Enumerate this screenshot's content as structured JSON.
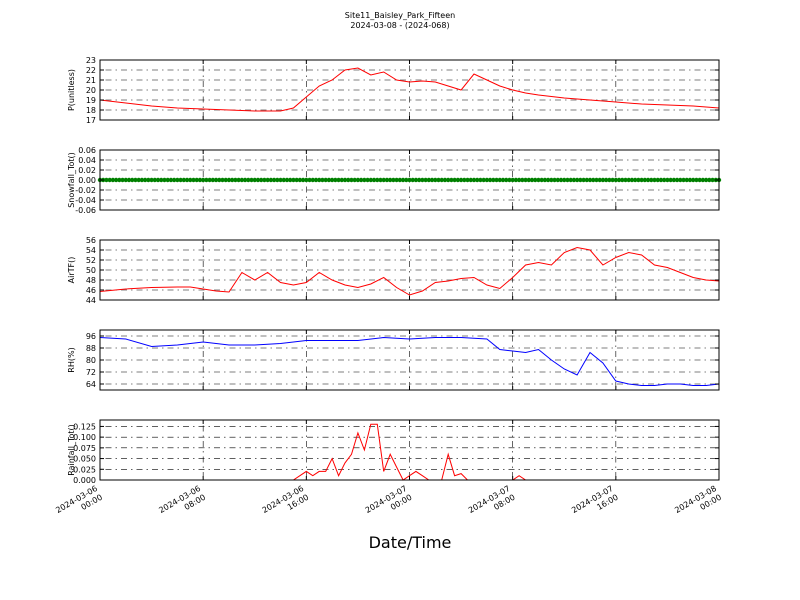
{
  "title": "Site11_Baisley_Park_Fifteen",
  "subtitle": "2024-03-08 - (2024-068)",
  "xlabel": "Date/Time",
  "chart_data": [
    {
      "type": "line",
      "ylabel": "P(unitless)",
      "ylim": [
        17,
        23
      ],
      "yticks": [
        17,
        18,
        19,
        20,
        21,
        22,
        23
      ],
      "ytick_labels": [
        "17",
        "18",
        "19",
        "20",
        "21",
        "22",
        "23"
      ],
      "color": "#ff0000",
      "grid": true,
      "x_hours": [
        0,
        2,
        4,
        6,
        8,
        10,
        12,
        14,
        15,
        16,
        17,
        18,
        19,
        20,
        21,
        22,
        23,
        24,
        25,
        26,
        27,
        28,
        29,
        30,
        31,
        32,
        33,
        34,
        36,
        38,
        40,
        42,
        44,
        46,
        48
      ],
      "values": [
        19,
        18.7,
        18.4,
        18.2,
        18.1,
        18,
        17.9,
        17.9,
        18.2,
        19.3,
        20.4,
        21,
        22,
        22.2,
        21.5,
        21.8,
        21,
        20.8,
        20.9,
        20.8,
        20.4,
        20,
        21.6,
        21,
        20.4,
        20,
        19.7,
        19.5,
        19.2,
        19,
        18.8,
        18.6,
        18.5,
        18.4,
        18.2
      ]
    },
    {
      "type": "scatter",
      "ylabel": "Snowfall_Tot()",
      "ylim": [
        -0.06,
        0.06
      ],
      "yticks": [
        -0.06,
        -0.04,
        -0.02,
        0.0,
        0.02,
        0.04,
        0.06
      ],
      "ytick_labels": [
        "-0.06",
        "-0.04",
        "-0.02",
        "0.00",
        "0.02",
        "0.04",
        "0.06"
      ],
      "color": "#008000",
      "grid": true,
      "x_hours": [
        0,
        48
      ],
      "values": [
        0,
        0
      ]
    },
    {
      "type": "line",
      "ylabel": "AirTF()",
      "ylim": [
        44,
        56
      ],
      "yticks": [
        44,
        46,
        48,
        50,
        52,
        54,
        56
      ],
      "ytick_labels": [
        "44",
        "46",
        "48",
        "50",
        "52",
        "54",
        "56"
      ],
      "color": "#ff0000",
      "grid": true,
      "x_hours": [
        0,
        2,
        4,
        6,
        7,
        8,
        9,
        10,
        11,
        12,
        13,
        14,
        15,
        16,
        17,
        18,
        19,
        20,
        21,
        22,
        23,
        24,
        25,
        26,
        27,
        28,
        29,
        30,
        31,
        32,
        33,
        34,
        35,
        36,
        37,
        38,
        39,
        40,
        41,
        42,
        43,
        44,
        45,
        46,
        47,
        48
      ],
      "values": [
        45.7,
        46.2,
        46.5,
        46.6,
        46.6,
        46.2,
        45.8,
        45.6,
        49.5,
        48,
        49.5,
        47.5,
        47,
        47.5,
        49.5,
        48,
        47,
        46.5,
        47.2,
        48.5,
        46.5,
        45,
        45.8,
        47.5,
        47.8,
        48.3,
        48.5,
        47,
        46.3,
        48.5,
        51,
        51.5,
        51,
        53.5,
        54.5,
        54,
        51,
        52.5,
        53.5,
        53,
        51,
        50.5,
        49.5,
        48.5,
        48,
        47.8
      ]
    },
    {
      "type": "line",
      "ylabel": "RH(%)",
      "ylim": [
        60,
        100
      ],
      "yticks": [
        64,
        72,
        80,
        88,
        96
      ],
      "ytick_labels": [
        "64",
        "72",
        "80",
        "88",
        "96"
      ],
      "color": "#0000ff",
      "grid": true,
      "x_hours": [
        0,
        2,
        4,
        6,
        8,
        10,
        12,
        14,
        16,
        18,
        20,
        22,
        24,
        26,
        28,
        30,
        31,
        32,
        33,
        34,
        35,
        36,
        37,
        38,
        39,
        40,
        41,
        42,
        43,
        44,
        45,
        46,
        47,
        48
      ],
      "values": [
        95,
        94,
        89,
        90,
        92,
        90,
        90,
        91,
        93,
        93,
        93,
        95,
        94,
        95,
        95,
        94,
        87,
        86,
        85,
        87,
        80,
        74,
        70,
        85,
        78,
        66,
        64,
        63,
        63,
        64,
        64,
        63,
        63,
        64
      ]
    },
    {
      "type": "line",
      "ylabel": "Rainfall_Tot()",
      "ylim": [
        0,
        0.14
      ],
      "yticks": [
        0.0,
        0.025,
        0.05,
        0.075,
        0.1,
        0.125
      ],
      "ytick_labels": [
        "0.000",
        "0.025",
        "0.050",
        "0.075",
        "0.100",
        "0.125"
      ],
      "color": "#ff0000",
      "grid": true,
      "x_hours": [
        0,
        15,
        15.5,
        16,
        16.5,
        17,
        17.5,
        18,
        18.5,
        19,
        19.5,
        20,
        20.5,
        21,
        21.5,
        22,
        22.5,
        23,
        23.5,
        24,
        24.5,
        25,
        25.5,
        26,
        26.5,
        27,
        27.5,
        28,
        28.5,
        29,
        30,
        32,
        32.5,
        33,
        48
      ],
      "values": [
        0,
        0,
        0.01,
        0.02,
        0.01,
        0.02,
        0.02,
        0.05,
        0.01,
        0.04,
        0.06,
        0.11,
        0.07,
        0.13,
        0.13,
        0.02,
        0.06,
        0.03,
        0.0,
        0.01,
        0.02,
        0.01,
        0.0,
        0.0,
        0.0,
        0.06,
        0.01,
        0.015,
        0.0,
        0.0,
        0.0,
        0.0,
        0.01,
        0.0,
        0.0
      ]
    }
  ],
  "xticks": {
    "hours": [
      0,
      8,
      16,
      24,
      32,
      40,
      48
    ],
    "labels": [
      [
        "2024-03-06",
        "00:00"
      ],
      [
        "2024-03-06",
        "08:00"
      ],
      [
        "2024-03-06",
        "16:00"
      ],
      [
        "2024-03-07",
        "00:00"
      ],
      [
        "2024-03-07",
        "08:00"
      ],
      [
        "2024-03-07",
        "16:00"
      ],
      [
        "2024-03-08",
        "00:00"
      ]
    ]
  }
}
